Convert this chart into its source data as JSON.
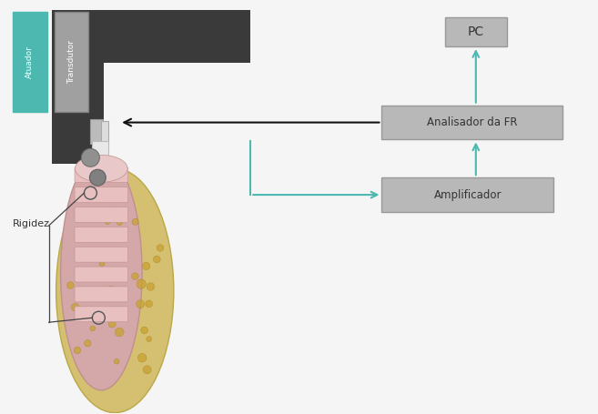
{
  "bg_color": "#f5f5f5",
  "teal_color": "#4db8b0",
  "dark_gray": "#3a3a3a",
  "medium_gray": "#888888",
  "light_gray": "#cccccc",
  "box_gray_face": "#b8b8b8",
  "box_gray_edge": "#999999",
  "arrow_black": "#111111",
  "text_white": "#ffffff",
  "text_dark": "#444444",
  "atuador_label": "Atuador",
  "transdutor_label": "Transdutor",
  "rigidez_label": "Rigidez",
  "analisador_label": "Analisador da FR",
  "amplificador_label": "Amplificador",
  "pc_label": "PC",
  "implant_pink": "#d4a8a8",
  "implant_pink_dark": "#c09090",
  "bone_yellow": "#d4c070",
  "bone_yellow_edge": "#b8a848",
  "neck_gray": "#cccccc",
  "circle_gray": "#909090",
  "dot_yellow": "#c8a030"
}
